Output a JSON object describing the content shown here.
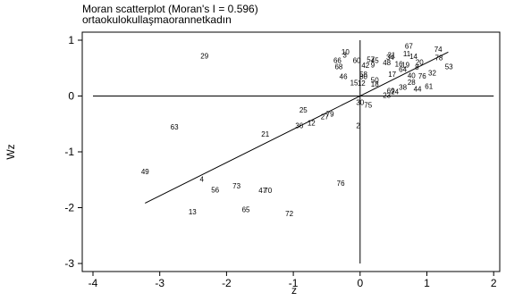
{
  "chart_data": {
    "type": "scatter",
    "title": "Moran scatterplot (Moran's I = 0.596)",
    "subtitle": "ortaokulokullaşmaorannetkadın",
    "xlabel": "z",
    "ylabel": "Wz",
    "xlim": [
      -4,
      2
    ],
    "ylim": [
      -3,
      1
    ],
    "x_ticks": [
      "-4",
      "-3",
      "-2",
      "-1",
      "0",
      "1",
      "2"
    ],
    "y_ticks": [
      "-3",
      "-2",
      "-1",
      "0",
      "1"
    ],
    "grid": false,
    "marker": "observation number labels",
    "fit_line": {
      "slope": 0.596,
      "x_range": [
        -3.22,
        1.32
      ]
    },
    "points": [
      {
        "label": "29",
        "x": -2.33,
        "y": 0.72
      },
      {
        "label": "10",
        "x": -0.22,
        "y": 0.79
      },
      {
        "label": "3",
        "x": -0.23,
        "y": 0.74
      },
      {
        "label": "67",
        "x": 0.73,
        "y": 0.9
      },
      {
        "label": "74",
        "x": 1.17,
        "y": 0.84
      },
      {
        "label": "78",
        "x": 1.18,
        "y": 0.69
      },
      {
        "label": "11",
        "x": 0.7,
        "y": 0.76
      },
      {
        "label": "14",
        "x": 0.8,
        "y": 0.71
      },
      {
        "label": "31",
        "x": 0.47,
        "y": 0.74
      },
      {
        "label": "34",
        "x": 0.45,
        "y": 0.7
      },
      {
        "label": "66",
        "x": -0.34,
        "y": 0.64
      },
      {
        "label": "60",
        "x": -0.05,
        "y": 0.64
      },
      {
        "label": "57",
        "x": 0.16,
        "y": 0.66
      },
      {
        "label": "45",
        "x": 0.22,
        "y": 0.64
      },
      {
        "label": "48",
        "x": 0.4,
        "y": 0.6
      },
      {
        "label": "16",
        "x": 0.58,
        "y": 0.58
      },
      {
        "label": "19",
        "x": 0.68,
        "y": 0.56
      },
      {
        "label": "20",
        "x": 0.89,
        "y": 0.61
      },
      {
        "label": "42",
        "x": 0.08,
        "y": 0.55
      },
      {
        "label": "9",
        "x": 0.19,
        "y": 0.56
      },
      {
        "label": "68",
        "x": -0.32,
        "y": 0.53
      },
      {
        "label": "53",
        "x": 1.33,
        "y": 0.53
      },
      {
        "label": "8",
        "x": 0.85,
        "y": 0.52
      },
      {
        "label": "64",
        "x": 0.64,
        "y": 0.48
      },
      {
        "label": "32",
        "x": 1.08,
        "y": 0.42
      },
      {
        "label": "58",
        "x": 0.05,
        "y": 0.39
      },
      {
        "label": "80",
        "x": 0.05,
        "y": 0.35
      },
      {
        "label": "40",
        "x": 0.77,
        "y": 0.37
      },
      {
        "label": "76",
        "x": 0.93,
        "y": 0.36
      },
      {
        "label": "46",
        "x": -0.25,
        "y": 0.35
      },
      {
        "label": "17",
        "x": 0.48,
        "y": 0.39
      },
      {
        "label": "28",
        "x": 0.77,
        "y": 0.25
      },
      {
        "label": "61",
        "x": 1.03,
        "y": 0.18
      },
      {
        "label": "15",
        "x": -0.09,
        "y": 0.24
      },
      {
        "label": "12",
        "x": 0.02,
        "y": 0.23
      },
      {
        "label": "50",
        "x": 0.22,
        "y": 0.29
      },
      {
        "label": "18",
        "x": 0.22,
        "y": 0.22
      },
      {
        "label": "38",
        "x": 0.64,
        "y": 0.16
      },
      {
        "label": "44",
        "x": 0.86,
        "y": 0.13
      },
      {
        "label": "69",
        "x": 0.46,
        "y": 0.1
      },
      {
        "label": "24",
        "x": 0.52,
        "y": 0.08
      },
      {
        "label": "23",
        "x": 0.4,
        "y": 0.02
      },
      {
        "label": "30",
        "x": 0.0,
        "y": -0.11
      },
      {
        "label": "75",
        "x": 0.12,
        "y": -0.16
      },
      {
        "label": "25",
        "x": -0.85,
        "y": -0.25
      },
      {
        "label": "79",
        "x": -0.45,
        "y": -0.32
      },
      {
        "label": "27",
        "x": -0.53,
        "y": -0.37
      },
      {
        "label": "12",
        "x": -0.73,
        "y": -0.48
      },
      {
        "label": "36",
        "x": -0.91,
        "y": -0.53
      },
      {
        "label": "2",
        "x": -0.03,
        "y": -0.53
      },
      {
        "label": "63",
        "x": -2.78,
        "y": -0.55
      },
      {
        "label": "21",
        "x": -1.42,
        "y": -0.68
      },
      {
        "label": "49",
        "x": -3.22,
        "y": -1.35
      },
      {
        "label": "4",
        "x": -2.37,
        "y": -1.49
      },
      {
        "label": "56",
        "x": -2.17,
        "y": -1.68
      },
      {
        "label": "73",
        "x": -1.85,
        "y": -1.61
      },
      {
        "label": "47",
        "x": -1.46,
        "y": -1.69
      },
      {
        "label": "70",
        "x": -1.38,
        "y": -1.69
      },
      {
        "label": "76",
        "x": -0.29,
        "y": -1.56
      },
      {
        "label": "13",
        "x": -2.51,
        "y": -2.07
      },
      {
        "label": "65",
        "x": -1.71,
        "y": -2.03
      },
      {
        "label": "72",
        "x": -1.06,
        "y": -2.1
      }
    ]
  }
}
